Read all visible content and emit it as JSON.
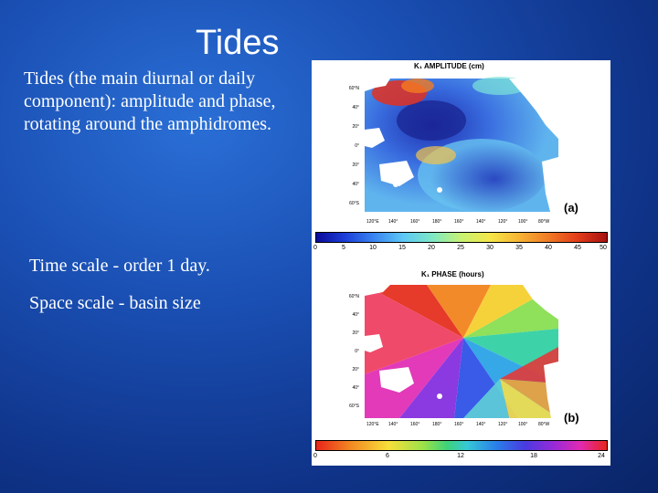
{
  "slide": {
    "title": "Tides",
    "paragraph": "Tides (the main diurnal or daily component): amplitude and phase, rotating around the amphidromes.",
    "time_scale": "Time scale - order 1 day.",
    "space_scale": "Space scale - basin size"
  },
  "figure": {
    "panel_a": {
      "title": "K₁ AMPLITUDE (cm)",
      "letter": "(a)",
      "lat_labels": [
        "60°N",
        "40°",
        "20°",
        "0°",
        "20°",
        "40°",
        "60°S"
      ],
      "lon_labels": [
        "120°E",
        "140°",
        "160°",
        "180°",
        "160°",
        "140°",
        "120°",
        "100°",
        "80°W"
      ],
      "colorbar_ticks": [
        "0",
        "5",
        "10",
        "15",
        "20",
        "25",
        "30",
        "35",
        "40",
        "45",
        "50"
      ]
    },
    "panel_b": {
      "title": "K₁ PHASE (hours)",
      "letter": "(b)",
      "lat_labels": [
        "60°N",
        "40°",
        "20°",
        "0°",
        "20°",
        "40°",
        "60°S"
      ],
      "lon_labels": [
        "120°E",
        "140°",
        "160°",
        "180°",
        "160°",
        "140°",
        "120°",
        "100°",
        "80°W"
      ],
      "colorbar_ticks": [
        "0",
        "6",
        "12",
        "18",
        "24"
      ]
    }
  }
}
